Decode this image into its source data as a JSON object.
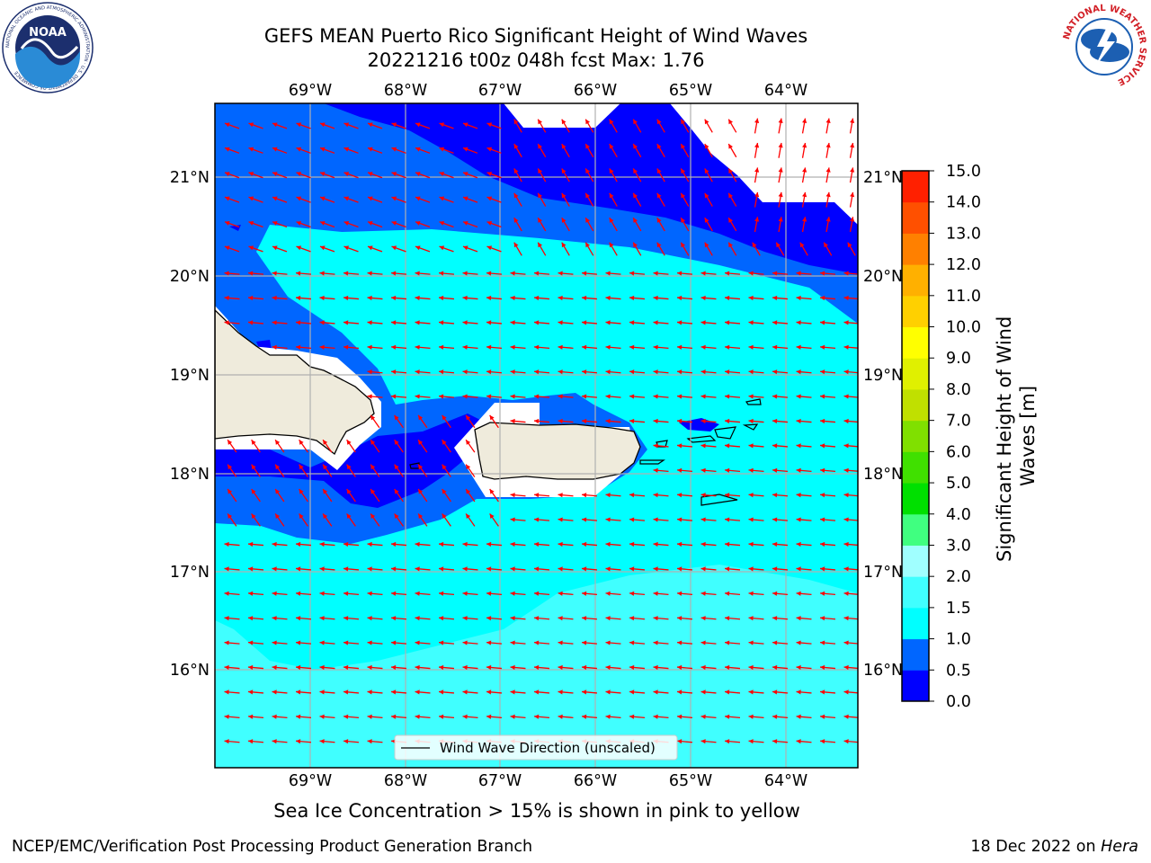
{
  "title": {
    "line1": "GEFS MEAN Puerto Rico Significant Height of Wind Waves",
    "line2": "20221216 t00z 048h fcst   Max: 1.76"
  },
  "map": {
    "lon_labels": [
      "69°W",
      "68°W",
      "67°W",
      "66°W",
      "65°W",
      "64°W"
    ],
    "lat_labels": [
      "21°N",
      "20°N",
      "19°N",
      "18°N",
      "17°N",
      "16°N"
    ],
    "legend_label": "Wind Wave Direction (unscaled)",
    "arrow_color": "#ff0000",
    "grid_color": "#b0b0b0",
    "land_color": "#efebdc"
  },
  "colorbar": {
    "label_line1": "Significant Height of Wind",
    "label_line2": "Waves [m]",
    "ticks": [
      "0.0",
      "0.5",
      "1.0",
      "1.5",
      "2.0",
      "3.0",
      "4.0",
      "5.0",
      "6.0",
      "7.0",
      "8.0",
      "9.0",
      "10.0",
      "11.0",
      "12.0",
      "13.0",
      "14.0",
      "15.0"
    ],
    "colors": [
      "#0000ff",
      "#0066ff",
      "#00ffff",
      "#40ffff",
      "#a0ffff",
      "#40ff80",
      "#00e000",
      "#40e000",
      "#80e000",
      "#c0e000",
      "#e0f000",
      "#ffff00",
      "#ffd000",
      "#ffb000",
      "#ff8000",
      "#ff5000",
      "#ff2000"
    ]
  },
  "note": "Sea Ice Concentration > 15% is shown in pink to yellow",
  "footer": {
    "left": "NCEP/EMC/Verification Post Processing Product Generation Branch",
    "right_date": "18 Dec 2022 on",
    "right_host": "Hera"
  },
  "logos": {
    "noaa": "NOAA",
    "noaa_ring": "NATIONAL OCEANIC AND ATMOSPHERIC ADMINISTRATION · U.S. DEPARTMENT OF COMMERCE",
    "nws_ring": "NATIONAL WEATHER SERVICE"
  }
}
